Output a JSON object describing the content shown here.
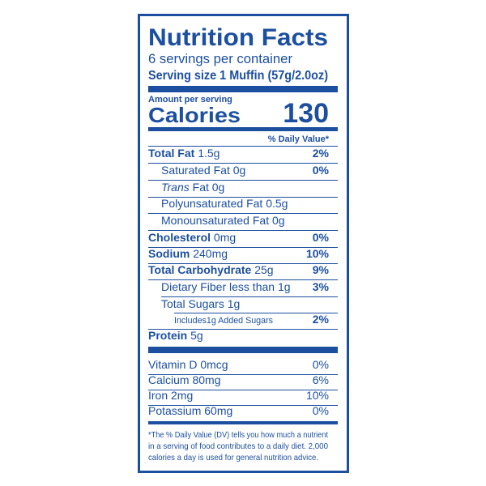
{
  "header": {
    "title": "Nutrition Facts",
    "servings": "6 servings per container",
    "serving_size": "Serving size 1 Muffin (57g/2.0oz)"
  },
  "calories": {
    "amount_per_serving": "Amount per serving",
    "label": "Calories",
    "value": 130
  },
  "dv_header": "% Daily Value*",
  "nutrients": [
    {
      "label": "Total Fat",
      "amount": "1.5g",
      "dv": "2%"
    },
    {
      "label": "Saturated Fat",
      "amount": "0g",
      "dv": "0%"
    },
    {
      "label_italic": "Trans",
      "label": "Fat",
      "amount": "0g"
    },
    {
      "label": "Polyunsaturated Fat",
      "amount": "0.5g"
    },
    {
      "label": "Monounsaturated Fat",
      "amount": "0g"
    },
    {
      "label": "Cholesterol",
      "amount": "0mg",
      "dv": "0%"
    },
    {
      "label": "Sodium",
      "amount": "240mg",
      "dv": "10%"
    },
    {
      "label": "Total Carbohydrate",
      "amount": "25g",
      "dv": "9%"
    },
    {
      "label": "Dietary Fiber less than",
      "amount": "1g",
      "dv": "3%"
    },
    {
      "label": "Total Sugars",
      "amount": "1g"
    },
    {
      "label": "Includes1g Added Sugars",
      "dv": "2%"
    },
    {
      "label": "Protein",
      "amount": "5g"
    }
  ],
  "vitamins": [
    {
      "label": "Vitamin D",
      "amount": "0mcg",
      "dv": "0%"
    },
    {
      "label": "Calcium",
      "amount": "80mg",
      "dv": "6%"
    },
    {
      "label": "Iron",
      "amount": "2mg",
      "dv": "10%"
    },
    {
      "label": "Potassium",
      "amount": "60mg",
      "dv": "0%"
    }
  ],
  "footnote": [
    "*The % Daily Value (DV) tells you how much a nutrient",
    "in a serving of food contributes to a daily diet. 2,000",
    "calories a day is used for general nutrition advice."
  ]
}
